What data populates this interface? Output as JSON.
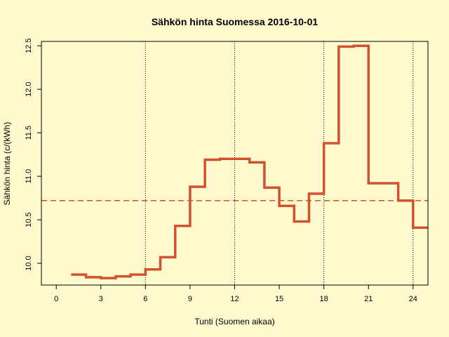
{
  "chart_data": {
    "type": "line",
    "step": true,
    "title": "Sähkön hinta Suomessa 2016-10-01",
    "xlabel": "Tunti (Suomen aikaa)",
    "ylabel": "Sähkön hinta (c/(kWh)",
    "xlim": [
      -1,
      25
    ],
    "ylim": [
      9.75,
      12.55
    ],
    "x_ticks": [
      0,
      3,
      6,
      9,
      12,
      15,
      18,
      21,
      24
    ],
    "y_ticks": [
      10.0,
      10.5,
      11.0,
      11.5,
      12.0,
      12.5
    ],
    "y_tick_labels": [
      "10.0",
      "10.5",
      "11.0",
      "11.5",
      "12.0",
      "12.5"
    ],
    "vertical_reference_lines": [
      6,
      12,
      18,
      24
    ],
    "mean_value": 10.72,
    "series": [
      {
        "color": "#d2512e",
        "x": [
          1,
          2,
          3,
          4,
          5,
          6,
          7,
          8,
          9,
          10,
          11,
          12,
          13,
          14,
          15,
          16,
          17,
          18,
          19,
          20,
          21,
          22,
          23,
          24,
          25
        ],
        "values": [
          9.87,
          9.84,
          9.83,
          9.85,
          9.87,
          9.93,
          10.07,
          10.43,
          10.88,
          11.19,
          11.2,
          11.2,
          11.16,
          10.87,
          10.66,
          10.48,
          10.8,
          11.38,
          12.49,
          12.5,
          10.92,
          10.92,
          10.72,
          10.41,
          10.41
        ]
      }
    ],
    "colors": {
      "background": "#fffacd",
      "line": "#d2512e",
      "mean_line": "#d2512e",
      "axis": "#000000",
      "reference_line": "#000000"
    }
  }
}
